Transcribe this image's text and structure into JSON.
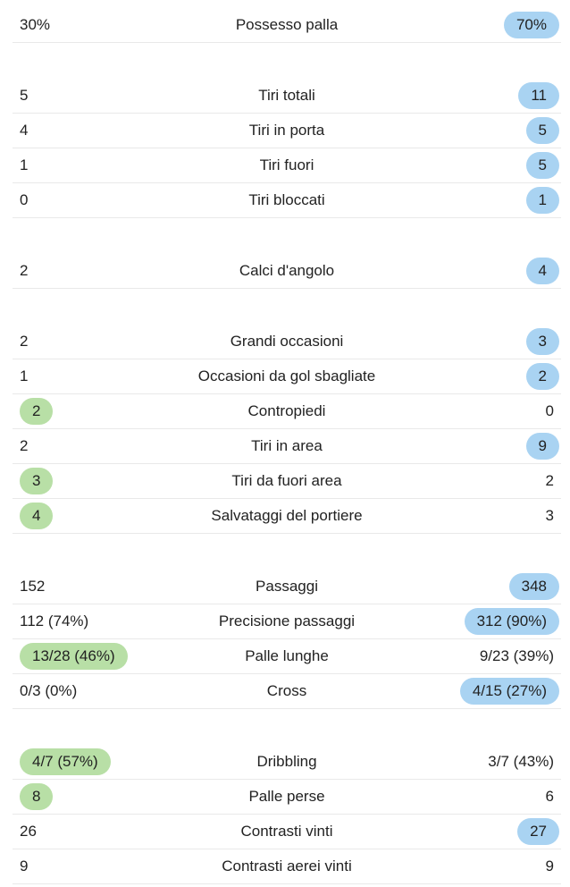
{
  "colors": {
    "left_highlight": "#b8dfa6",
    "right_highlight": "#a9d3f2"
  },
  "groups": [
    {
      "rows": [
        {
          "label": "Possesso palla",
          "left": "30%",
          "right": "70%",
          "highlight": "right"
        }
      ]
    },
    {
      "rows": [
        {
          "label": "Tiri totali",
          "left": "5",
          "right": "11",
          "highlight": "right"
        },
        {
          "label": "Tiri in porta",
          "left": "4",
          "right": "5",
          "highlight": "right"
        },
        {
          "label": "Tiri fuori",
          "left": "1",
          "right": "5",
          "highlight": "right"
        },
        {
          "label": "Tiri bloccati",
          "left": "0",
          "right": "1",
          "highlight": "right"
        }
      ]
    },
    {
      "rows": [
        {
          "label": "Calci d'angolo",
          "left": "2",
          "right": "4",
          "highlight": "right"
        }
      ]
    },
    {
      "rows": [
        {
          "label": "Grandi occasioni",
          "left": "2",
          "right": "3",
          "highlight": "right"
        },
        {
          "label": "Occasioni da gol sbagliate",
          "left": "1",
          "right": "2",
          "highlight": "right"
        },
        {
          "label": "Contropiedi",
          "left": "2",
          "right": "0",
          "highlight": "left"
        },
        {
          "label": "Tiri in area",
          "left": "2",
          "right": "9",
          "highlight": "right"
        },
        {
          "label": "Tiri da fuori area",
          "left": "3",
          "right": "2",
          "highlight": "left"
        },
        {
          "label": "Salvataggi del portiere",
          "left": "4",
          "right": "3",
          "highlight": "left"
        }
      ]
    },
    {
      "rows": [
        {
          "label": "Passaggi",
          "left": "152",
          "right": "348",
          "highlight": "right"
        },
        {
          "label": "Precisione passaggi",
          "left": "112 (74%)",
          "right": "312 (90%)",
          "highlight": "right"
        },
        {
          "label": "Palle lunghe",
          "left": "13/28 (46%)",
          "right": "9/23 (39%)",
          "highlight": "left"
        },
        {
          "label": "Cross",
          "left": "0/3 (0%)",
          "right": "4/15 (27%)",
          "highlight": "right"
        }
      ]
    },
    {
      "rows": [
        {
          "label": "Dribbling",
          "left": "4/7 (57%)",
          "right": "3/7 (43%)",
          "highlight": "left"
        },
        {
          "label": "Palle perse",
          "left": "8",
          "right": "6",
          "highlight": "left"
        },
        {
          "label": "Contrasti vinti",
          "left": "26",
          "right": "27",
          "highlight": "right"
        },
        {
          "label": "Contrasti aerei vinti",
          "left": "9",
          "right": "9",
          "highlight": "none"
        }
      ]
    }
  ]
}
